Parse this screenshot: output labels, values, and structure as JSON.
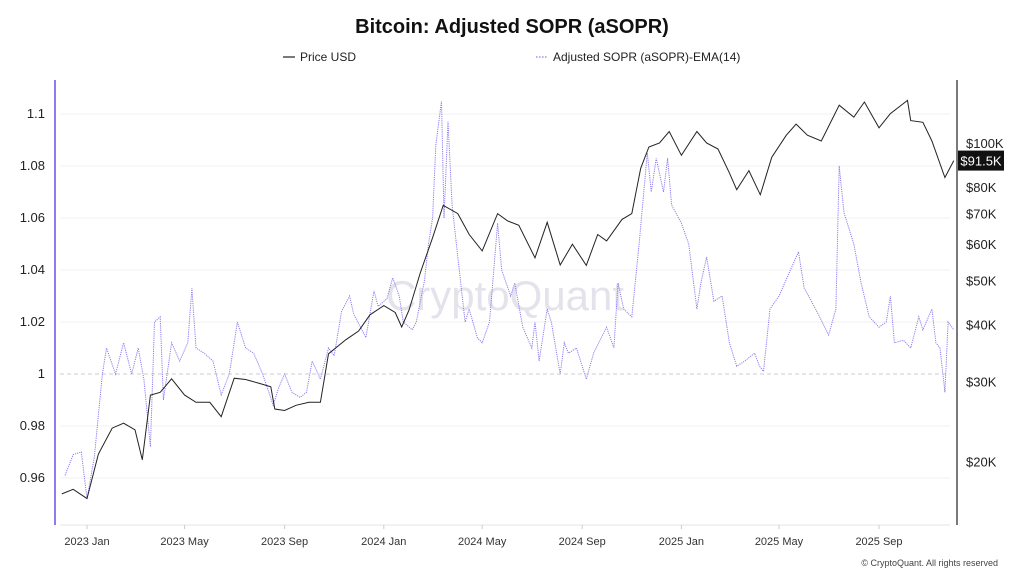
{
  "chart_data": {
    "type": "line",
    "title": "Bitcoin: Adjusted SOPR (aSOPR)",
    "legend_placement": "top",
    "grid": true,
    "watermark": "CryptoQuant",
    "footer": "© CryptoQuant. All rights reserved",
    "x_ticks": [
      "2023 Jan",
      "2023 May",
      "2023 Sep",
      "2024 Jan",
      "2024 May",
      "2024 Sep",
      "2025 Jan",
      "2025 May",
      "2025 Sep"
    ],
    "x_tick_dates": [
      "2023-01-01",
      "2023-05-01",
      "2023-09-01",
      "2024-01-01",
      "2024-05-01",
      "2024-09-01",
      "2025-01-01",
      "2025-05-01",
      "2025-09-01"
    ],
    "left_axis": {
      "ticks": [
        "1.1",
        "1.08",
        "1.06",
        "1.04",
        "1.02",
        "1",
        "0.98",
        "0.96"
      ],
      "tick_values": [
        1.1,
        1.08,
        1.06,
        1.04,
        1.02,
        1,
        0.98,
        0.96
      ],
      "range": [
        0.947,
        1.112
      ],
      "color": "#8b7cf0"
    },
    "right_axis": {
      "scale": "log",
      "ticks": [
        "$100K",
        "$80K",
        "$70K",
        "$60K",
        "$50K",
        "$40K",
        "$30K",
        "$20K"
      ],
      "tick_values": [
        100000,
        80000,
        70000,
        60000,
        50000,
        40000,
        30000,
        20000
      ],
      "last_value_label": "$91.5K",
      "last_value": 91500
    },
    "reference_line": {
      "value": 1,
      "style": "dashed"
    },
    "series": [
      {
        "name": "Price USD",
        "axis": "right",
        "color": "#222222",
        "style": "solid",
        "points": [
          [
            "2022-12-01",
            17000
          ],
          [
            "2022-12-15",
            17400
          ],
          [
            "2023-01-01",
            16600
          ],
          [
            "2023-01-15",
            20800
          ],
          [
            "2023-02-01",
            23700
          ],
          [
            "2023-02-15",
            24300
          ],
          [
            "2023-03-01",
            23500
          ],
          [
            "2023-03-10",
            20200
          ],
          [
            "2023-03-20",
            28000
          ],
          [
            "2023-04-01",
            28400
          ],
          [
            "2023-04-15",
            30400
          ],
          [
            "2023-05-01",
            28000
          ],
          [
            "2023-05-15",
            27000
          ],
          [
            "2023-06-01",
            27000
          ],
          [
            "2023-06-15",
            25100
          ],
          [
            "2023-07-01",
            30500
          ],
          [
            "2023-07-15",
            30300
          ],
          [
            "2023-08-01",
            29700
          ],
          [
            "2023-08-15",
            29200
          ],
          [
            "2023-08-20",
            26100
          ],
          [
            "2023-09-01",
            25900
          ],
          [
            "2023-09-15",
            26600
          ],
          [
            "2023-10-01",
            27000
          ],
          [
            "2023-10-15",
            27000
          ],
          [
            "2023-10-25",
            34500
          ],
          [
            "2023-11-15",
            37000
          ],
          [
            "2023-12-01",
            38700
          ],
          [
            "2023-12-15",
            42000
          ],
          [
            "2024-01-01",
            44000
          ],
          [
            "2024-01-15",
            42500
          ],
          [
            "2024-01-23",
            39500
          ],
          [
            "2024-02-01",
            43000
          ],
          [
            "2024-02-15",
            52000
          ],
          [
            "2024-03-01",
            62000
          ],
          [
            "2024-03-14",
            73000
          ],
          [
            "2024-04-01",
            70000
          ],
          [
            "2024-04-15",
            63000
          ],
          [
            "2024-05-01",
            58000
          ],
          [
            "2024-05-20",
            70000
          ],
          [
            "2024-06-01",
            67500
          ],
          [
            "2024-06-15",
            66000
          ],
          [
            "2024-07-05",
            56000
          ],
          [
            "2024-07-20",
            67000
          ],
          [
            "2024-08-05",
            54000
          ],
          [
            "2024-08-20",
            60000
          ],
          [
            "2024-09-06",
            53900
          ],
          [
            "2024-09-20",
            63000
          ],
          [
            "2024-10-01",
            61000
          ],
          [
            "2024-10-20",
            68000
          ],
          [
            "2024-11-01",
            70000
          ],
          [
            "2024-11-12",
            88000
          ],
          [
            "2024-11-22",
            98000
          ],
          [
            "2024-12-05",
            100000
          ],
          [
            "2024-12-17",
            106000
          ],
          [
            "2025-01-01",
            94000
          ],
          [
            "2025-01-20",
            106000
          ],
          [
            "2025-02-01",
            100000
          ],
          [
            "2025-02-15",
            97000
          ],
          [
            "2025-03-01",
            86000
          ],
          [
            "2025-03-10",
            79000
          ],
          [
            "2025-03-25",
            87000
          ],
          [
            "2025-04-08",
            77000
          ],
          [
            "2025-04-22",
            93000
          ],
          [
            "2025-05-10",
            104000
          ],
          [
            "2025-05-22",
            110000
          ],
          [
            "2025-06-05",
            104000
          ],
          [
            "2025-06-22",
            101000
          ],
          [
            "2025-07-14",
            121000
          ],
          [
            "2025-08-01",
            114000
          ],
          [
            "2025-08-14",
            123000
          ],
          [
            "2025-09-01",
            108000
          ],
          [
            "2025-09-15",
            116000
          ],
          [
            "2025-10-06",
            124000
          ],
          [
            "2025-10-10",
            112000
          ],
          [
            "2025-10-25",
            111000
          ],
          [
            "2025-11-05",
            101000
          ],
          [
            "2025-11-21",
            84000
          ],
          [
            "2025-12-02",
            91500
          ]
        ]
      },
      {
        "name": "Adjusted SOPR (aSOPR)-EMA(14)",
        "axis": "left",
        "color": "#8b7cf0",
        "style": "dotted",
        "points": [
          [
            "2022-12-05",
            0.961
          ],
          [
            "2022-12-15",
            0.969
          ],
          [
            "2022-12-25",
            0.97
          ],
          [
            "2023-01-01",
            0.952
          ],
          [
            "2023-01-10",
            0.968
          ],
          [
            "2023-01-20",
            1.0
          ],
          [
            "2023-01-25",
            1.01
          ],
          [
            "2023-02-05",
            1.0
          ],
          [
            "2023-02-15",
            1.012
          ],
          [
            "2023-02-25",
            1.0
          ],
          [
            "2023-03-05",
            1.01
          ],
          [
            "2023-03-12",
            0.998
          ],
          [
            "2023-03-20",
            0.972
          ],
          [
            "2023-03-25",
            1.02
          ],
          [
            "2023-04-01",
            1.022
          ],
          [
            "2023-04-05",
            0.99
          ],
          [
            "2023-04-15",
            1.012
          ],
          [
            "2023-04-25",
            1.005
          ],
          [
            "2023-05-05",
            1.012
          ],
          [
            "2023-05-10",
            1.033
          ],
          [
            "2023-05-15",
            1.01
          ],
          [
            "2023-05-25",
            1.008
          ],
          [
            "2023-06-05",
            1.005
          ],
          [
            "2023-06-15",
            0.992
          ],
          [
            "2023-06-25",
            1.0
          ],
          [
            "2023-07-05",
            1.02
          ],
          [
            "2023-07-15",
            1.01
          ],
          [
            "2023-07-25",
            1.008
          ],
          [
            "2023-08-05",
            1.0
          ],
          [
            "2023-08-18",
            0.988
          ],
          [
            "2023-08-25",
            0.995
          ],
          [
            "2023-09-01",
            1.0
          ],
          [
            "2023-09-10",
            0.993
          ],
          [
            "2023-09-20",
            0.991
          ],
          [
            "2023-09-28",
            0.993
          ],
          [
            "2023-10-05",
            1.005
          ],
          [
            "2023-10-15",
            0.998
          ],
          [
            "2023-10-25",
            1.01
          ],
          [
            "2023-11-01",
            1.007
          ],
          [
            "2023-11-10",
            1.024
          ],
          [
            "2023-11-20",
            1.03
          ],
          [
            "2023-11-25",
            1.023
          ],
          [
            "2023-12-10",
            1.014
          ],
          [
            "2023-12-20",
            1.032
          ],
          [
            "2023-12-25",
            1.026
          ],
          [
            "2024-01-05",
            1.029
          ],
          [
            "2024-01-12",
            1.037
          ],
          [
            "2024-01-20",
            1.03
          ],
          [
            "2024-01-25",
            1.02
          ],
          [
            "2024-02-05",
            1.017
          ],
          [
            "2024-02-10",
            1.02
          ],
          [
            "2024-02-20",
            1.036
          ],
          [
            "2024-02-25",
            1.05
          ],
          [
            "2024-03-01",
            1.06
          ],
          [
            "2024-03-05",
            1.088
          ],
          [
            "2024-03-12",
            1.105
          ],
          [
            "2024-03-15",
            1.06
          ],
          [
            "2024-03-20",
            1.097
          ],
          [
            "2024-03-25",
            1.065
          ],
          [
            "2024-04-01",
            1.045
          ],
          [
            "2024-04-10",
            1.02
          ],
          [
            "2024-04-15",
            1.025
          ],
          [
            "2024-04-25",
            1.014
          ],
          [
            "2024-05-01",
            1.012
          ],
          [
            "2024-05-10",
            1.02
          ],
          [
            "2024-05-20",
            1.058
          ],
          [
            "2024-05-25",
            1.04
          ],
          [
            "2024-06-05",
            1.03
          ],
          [
            "2024-06-10",
            1.035
          ],
          [
            "2024-06-20",
            1.018
          ],
          [
            "2024-07-01",
            1.01
          ],
          [
            "2024-07-05",
            1.02
          ],
          [
            "2024-07-10",
            1.005
          ],
          [
            "2024-07-20",
            1.025
          ],
          [
            "2024-07-25",
            1.02
          ],
          [
            "2024-08-05",
            1.0
          ],
          [
            "2024-08-10",
            1.012
          ],
          [
            "2024-08-15",
            1.008
          ],
          [
            "2024-08-25",
            1.01
          ],
          [
            "2024-09-06",
            0.998
          ],
          [
            "2024-09-15",
            1.008
          ],
          [
            "2024-10-01",
            1.018
          ],
          [
            "2024-10-10",
            1.01
          ],
          [
            "2024-10-15",
            1.035
          ],
          [
            "2024-10-22",
            1.025
          ],
          [
            "2024-11-01",
            1.022
          ],
          [
            "2024-11-10",
            1.05
          ],
          [
            "2024-11-20",
            1.085
          ],
          [
            "2024-11-25",
            1.07
          ],
          [
            "2024-12-01",
            1.083
          ],
          [
            "2024-12-10",
            1.07
          ],
          [
            "2024-12-15",
            1.083
          ],
          [
            "2024-12-20",
            1.065
          ],
          [
            "2025-01-01",
            1.058
          ],
          [
            "2025-01-10",
            1.05
          ],
          [
            "2025-01-20",
            1.025
          ],
          [
            "2025-01-25",
            1.035
          ],
          [
            "2025-02-01",
            1.045
          ],
          [
            "2025-02-10",
            1.028
          ],
          [
            "2025-02-20",
            1.03
          ],
          [
            "2025-03-01",
            1.012
          ],
          [
            "2025-03-10",
            1.003
          ],
          [
            "2025-03-20",
            1.005
          ],
          [
            "2025-04-01",
            1.008
          ],
          [
            "2025-04-07",
            1.003
          ],
          [
            "2025-04-12",
            1.001
          ],
          [
            "2025-04-20",
            1.025
          ],
          [
            "2025-05-01",
            1.03
          ],
          [
            "2025-05-15",
            1.04
          ],
          [
            "2025-05-25",
            1.047
          ],
          [
            "2025-06-01",
            1.033
          ],
          [
            "2025-06-10",
            1.028
          ],
          [
            "2025-06-20",
            1.022
          ],
          [
            "2025-07-01",
            1.015
          ],
          [
            "2025-07-10",
            1.025
          ],
          [
            "2025-07-14",
            1.08
          ],
          [
            "2025-07-20",
            1.062
          ],
          [
            "2025-08-01",
            1.05
          ],
          [
            "2025-08-10",
            1.035
          ],
          [
            "2025-08-20",
            1.022
          ],
          [
            "2025-09-01",
            1.018
          ],
          [
            "2025-09-10",
            1.02
          ],
          [
            "2025-09-15",
            1.03
          ],
          [
            "2025-09-20",
            1.012
          ],
          [
            "2025-10-01",
            1.013
          ],
          [
            "2025-10-10",
            1.01
          ],
          [
            "2025-10-20",
            1.022
          ],
          [
            "2025-10-25",
            1.017
          ],
          [
            "2025-11-05",
            1.025
          ],
          [
            "2025-11-10",
            1.012
          ],
          [
            "2025-11-15",
            1.01
          ],
          [
            "2025-11-21",
            0.993
          ],
          [
            "2025-11-25",
            1.02
          ],
          [
            "2025-12-02",
            1.017
          ]
        ]
      }
    ]
  }
}
